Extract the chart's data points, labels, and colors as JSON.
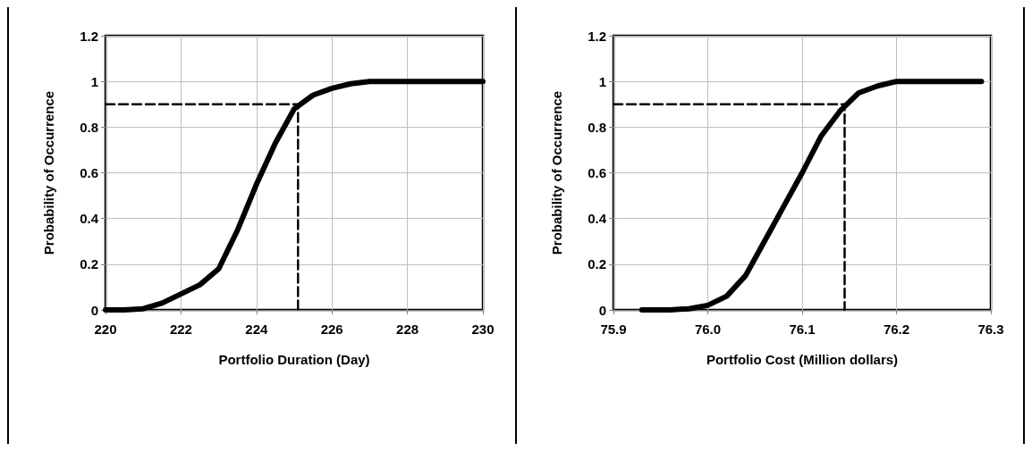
{
  "chart_data": [
    {
      "type": "line",
      "xlabel": "Portfolio Duration (Day)",
      "ylabel": "Probability of Occurrence",
      "xlim": [
        220,
        230
      ],
      "xticks": [
        220,
        222,
        224,
        226,
        228,
        230
      ],
      "ylim": [
        0,
        1.2
      ],
      "yticks": [
        0,
        0.2,
        0.4,
        0.6,
        0.8,
        1,
        1.2
      ],
      "grid": true,
      "marker": "none",
      "series": [
        {
          "color": "#000000",
          "line_style": "solid",
          "x": [
            220,
            220.5,
            221,
            221.5,
            222,
            222.5,
            223,
            223.5,
            224,
            224.5,
            225,
            225.5,
            226,
            226.5,
            227,
            228,
            229,
            230
          ],
          "values": [
            0,
            0,
            0.005,
            0.03,
            0.07,
            0.11,
            0.18,
            0.35,
            0.55,
            0.73,
            0.88,
            0.94,
            0.97,
            0.99,
            1,
            1,
            1,
            1
          ]
        },
        {
          "color": "#000000",
          "line_style": "dashed",
          "x": [
            220,
            225.1,
            225.1
          ],
          "values": [
            0.9,
            0.9,
            0
          ]
        }
      ]
    },
    {
      "type": "line",
      "xlabel": "Portfolio Cost (Million dollars)",
      "ylabel": "Probability of Occurrence",
      "xlim": [
        75.9,
        76.3
      ],
      "xticks": [
        75.9,
        {
          "value": 76,
          "label": "76.0"
        },
        76.1,
        76.2,
        76.3
      ],
      "ylim": [
        0,
        1.2
      ],
      "yticks": [
        0,
        0.2,
        0.4,
        0.6,
        0.8,
        1,
        1.2
      ],
      "grid": true,
      "marker": "none",
      "series": [
        {
          "color": "#000000",
          "line_style": "solid",
          "x": [
            75.93,
            75.96,
            75.98,
            76.0,
            76.02,
            76.04,
            76.06,
            76.08,
            76.1,
            76.12,
            76.14,
            76.15,
            76.16,
            76.18,
            76.2,
            76.22,
            76.25,
            76.29
          ],
          "values": [
            0,
            0,
            0.005,
            0.02,
            0.06,
            0.15,
            0.3,
            0.45,
            0.6,
            0.76,
            0.87,
            0.91,
            0.95,
            0.98,
            1,
            1,
            1,
            1
          ]
        },
        {
          "color": "#000000",
          "line_style": "dashed",
          "x": [
            75.9,
            76.145,
            76.145
          ],
          "values": [
            0.9,
            0.9,
            0
          ]
        }
      ]
    }
  ]
}
